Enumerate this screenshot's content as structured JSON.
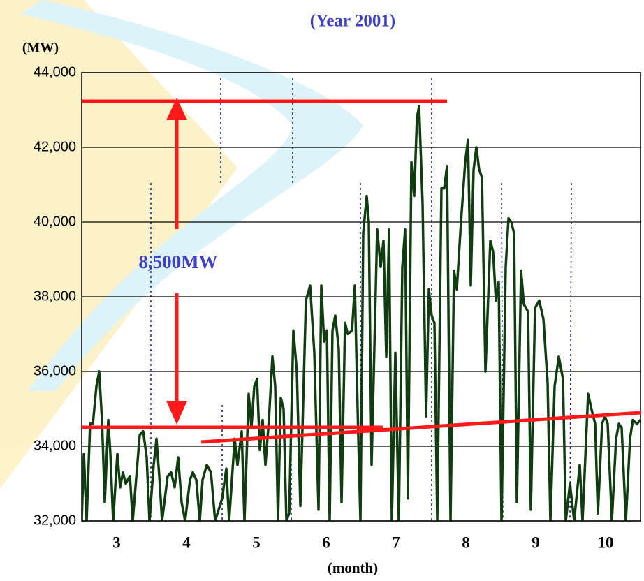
{
  "chart_data": {
    "type": "line",
    "title": "(Year 2001)",
    "y_label": "(MW)",
    "x_label": "(month)",
    "annotation": "8,500MW",
    "color": "#0f3d0f",
    "grid": true,
    "xlim": [
      2.5,
      10.5
    ],
    "xticks": [
      3,
      4,
      5,
      6,
      7,
      8,
      9,
      10
    ],
    "ylim": [
      32000,
      44000
    ],
    "yticks": [
      {
        "value": 32000,
        "label": "32,000"
      },
      {
        "value": 34000,
        "label": "34,000"
      },
      {
        "value": 36000,
        "label": "36,000"
      },
      {
        "value": 38000,
        "label": "38,000"
      },
      {
        "value": 40000,
        "label": "40,000"
      },
      {
        "value": 42000,
        "label": "42,000"
      },
      {
        "value": 44000,
        "label": "44,000"
      }
    ],
    "x": [
      2.5,
      2.53,
      2.57,
      2.62,
      2.66,
      2.71,
      2.75,
      2.79,
      2.83,
      2.88,
      2.91,
      2.95,
      3.01,
      3.05,
      3.09,
      3.13,
      3.19,
      3.23,
      3.33,
      3.38,
      3.43,
      3.47,
      3.53,
      3.57,
      3.61,
      3.65,
      3.73,
      3.78,
      3.83,
      3.88,
      3.93,
      3.98,
      4.05,
      4.09,
      4.14,
      4.19,
      4.23,
      4.29,
      4.35,
      4.41,
      4.51,
      4.57,
      4.61,
      4.69,
      4.73,
      4.79,
      4.83,
      4.89,
      4.93,
      4.97,
      5.01,
      5.05,
      5.09,
      5.13,
      5.18,
      5.23,
      5.27,
      5.31,
      5.35,
      5.39,
      5.43,
      5.47,
      5.53,
      5.58,
      5.63,
      5.71,
      5.77,
      5.83,
      5.89,
      5.93,
      5.97,
      6.01,
      6.05,
      6.09,
      6.13,
      6.18,
      6.22,
      6.27,
      6.31,
      6.37,
      6.41,
      6.45,
      6.49,
      6.53,
      6.58,
      6.61,
      6.65,
      6.73,
      6.78,
      6.82,
      6.86,
      6.9,
      6.94,
      6.99,
      7.04,
      7.09,
      7.13,
      7.17,
      7.22,
      7.26,
      7.3,
      7.33,
      7.38,
      7.43,
      7.47,
      7.51,
      7.55,
      7.59,
      7.65,
      7.69,
      7.73,
      7.78,
      7.83,
      7.87,
      7.93,
      7.99,
      8.03,
      8.07,
      8.11,
      8.15,
      8.19,
      8.23,
      8.28,
      8.35,
      8.39,
      8.43,
      8.47,
      8.51,
      8.57,
      8.61,
      8.65,
      8.69,
      8.73,
      8.79,
      8.83,
      8.89,
      8.93,
      8.99,
      9.05,
      9.11,
      9.17,
      9.21,
      9.27,
      9.33,
      9.39,
      9.43,
      9.49,
      9.55,
      9.63,
      9.67,
      9.75,
      9.81,
      9.85,
      9.89,
      9.95,
      9.99,
      10.03,
      10.09,
      10.15,
      10.19,
      10.23,
      10.29,
      10.35,
      10.39,
      10.45,
      10.5
    ],
    "values": [
      32000,
      33800,
      32000,
      34600,
      34600,
      35600,
      36000,
      34700,
      32500,
      34700,
      33800,
      32000,
      33800,
      32900,
      33300,
      33000,
      33200,
      32000,
      34300,
      34400,
      33700,
      32000,
      33500,
      34200,
      33200,
      32000,
      33200,
      33300,
      32900,
      33700,
      32500,
      32000,
      33100,
      33300,
      33100,
      32000,
      33100,
      33500,
      33300,
      32000,
      32600,
      33400,
      32000,
      34200,
      33500,
      34400,
      32000,
      35400,
      34500,
      35600,
      35800,
      33900,
      34700,
      33500,
      34700,
      36400,
      35600,
      32000,
      35300,
      35000,
      32000,
      32200,
      37100,
      36000,
      32400,
      37900,
      38300,
      36500,
      32300,
      38300,
      36800,
      37100,
      32000,
      37100,
      37500,
      36600,
      32500,
      37300,
      37000,
      37100,
      38300,
      35000,
      32000,
      39700,
      40700,
      40000,
      33500,
      39800,
      38800,
      39500,
      36400,
      39800,
      32000,
      36500,
      32000,
      38800,
      39800,
      32600,
      41600,
      40700,
      42800,
      43100,
      40500,
      34800,
      38200,
      37500,
      37300,
      32000,
      40900,
      40900,
      41500,
      32000,
      38700,
      38200,
      40000,
      41600,
      42200,
      38300,
      41400,
      42000,
      41400,
      41200,
      36000,
      39500,
      39200,
      37900,
      38400,
      32000,
      38800,
      40100,
      40000,
      39700,
      32500,
      38700,
      37800,
      37600,
      32300,
      37700,
      37900,
      37400,
      35700,
      32000,
      35600,
      36400,
      35800,
      32000,
      33000,
      32000,
      33500,
      32000,
      35400,
      34900,
      34600,
      32200,
      34600,
      34800,
      34600,
      32000,
      34200,
      34600,
      34500,
      32000,
      34200,
      34700,
      34600,
      34700
    ]
  }
}
